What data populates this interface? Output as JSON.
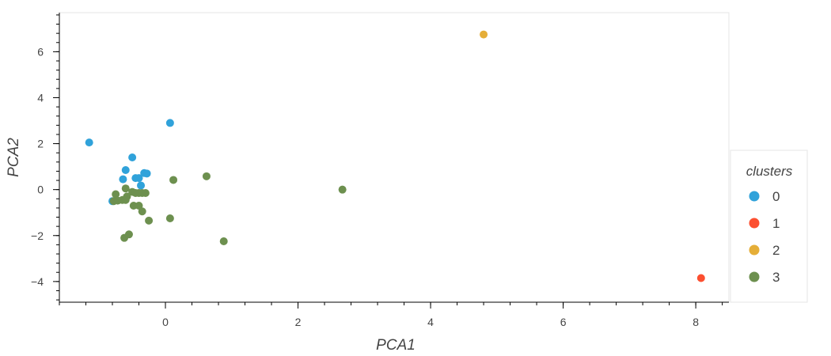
{
  "chart_data": {
    "type": "scatter",
    "xlabel": "PCA1",
    "ylabel": "PCA2",
    "xlim": [
      -1.6,
      8.5
    ],
    "ylim": [
      -4.9,
      7.7
    ],
    "xticks": [
      0,
      2,
      4,
      6,
      8
    ],
    "yticks": [
      -4,
      -2,
      0,
      2,
      4,
      6
    ],
    "xtick_labels": [
      "0",
      "2",
      "4",
      "6",
      "8"
    ],
    "ytick_labels": [
      "−4",
      "−2",
      "0",
      "2",
      "4",
      "6"
    ],
    "grid": false,
    "legend": {
      "title": "clusters",
      "placement": "right"
    },
    "series": [
      {
        "name": "0",
        "color": "#30a2da",
        "points": [
          {
            "x": -1.15,
            "y": 2.05
          },
          {
            "x": 0.07,
            "y": 2.9
          },
          {
            "x": -0.5,
            "y": 1.4
          },
          {
            "x": -0.6,
            "y": 0.85
          },
          {
            "x": -0.32,
            "y": 0.72
          },
          {
            "x": -0.28,
            "y": 0.7
          },
          {
            "x": -0.64,
            "y": 0.45
          },
          {
            "x": -0.45,
            "y": 0.5
          },
          {
            "x": -0.4,
            "y": 0.5
          },
          {
            "x": -0.37,
            "y": 0.18
          },
          {
            "x": -0.8,
            "y": -0.5
          }
        ]
      },
      {
        "name": "1",
        "color": "#fc4f30",
        "points": [
          {
            "x": 8.08,
            "y": -3.85
          }
        ]
      },
      {
        "name": "2",
        "color": "#e5ae38",
        "points": [
          {
            "x": 4.8,
            "y": 6.75
          }
        ]
      },
      {
        "name": "3",
        "color": "#6d904f",
        "points": [
          {
            "x": 0.12,
            "y": 0.42
          },
          {
            "x": 0.62,
            "y": 0.58
          },
          {
            "x": 2.67,
            "y": 0.0
          },
          {
            "x": -0.6,
            "y": 0.05
          },
          {
            "x": -0.5,
            "y": -0.1
          },
          {
            "x": -0.45,
            "y": -0.15
          },
          {
            "x": -0.4,
            "y": -0.15
          },
          {
            "x": -0.35,
            "y": -0.15
          },
          {
            "x": -0.3,
            "y": -0.15
          },
          {
            "x": -0.75,
            "y": -0.2
          },
          {
            "x": -0.58,
            "y": -0.3
          },
          {
            "x": -0.78,
            "y": -0.5
          },
          {
            "x": -0.72,
            "y": -0.48
          },
          {
            "x": -0.65,
            "y": -0.45
          },
          {
            "x": -0.6,
            "y": -0.45
          },
          {
            "x": -0.48,
            "y": -0.7
          },
          {
            "x": -0.4,
            "y": -0.7
          },
          {
            "x": -0.35,
            "y": -0.95
          },
          {
            "x": 0.07,
            "y": -1.25
          },
          {
            "x": -0.25,
            "y": -1.35
          },
          {
            "x": -0.55,
            "y": -1.95
          },
          {
            "x": -0.62,
            "y": -2.1
          },
          {
            "x": 0.88,
            "y": -2.25
          }
        ]
      }
    ]
  }
}
